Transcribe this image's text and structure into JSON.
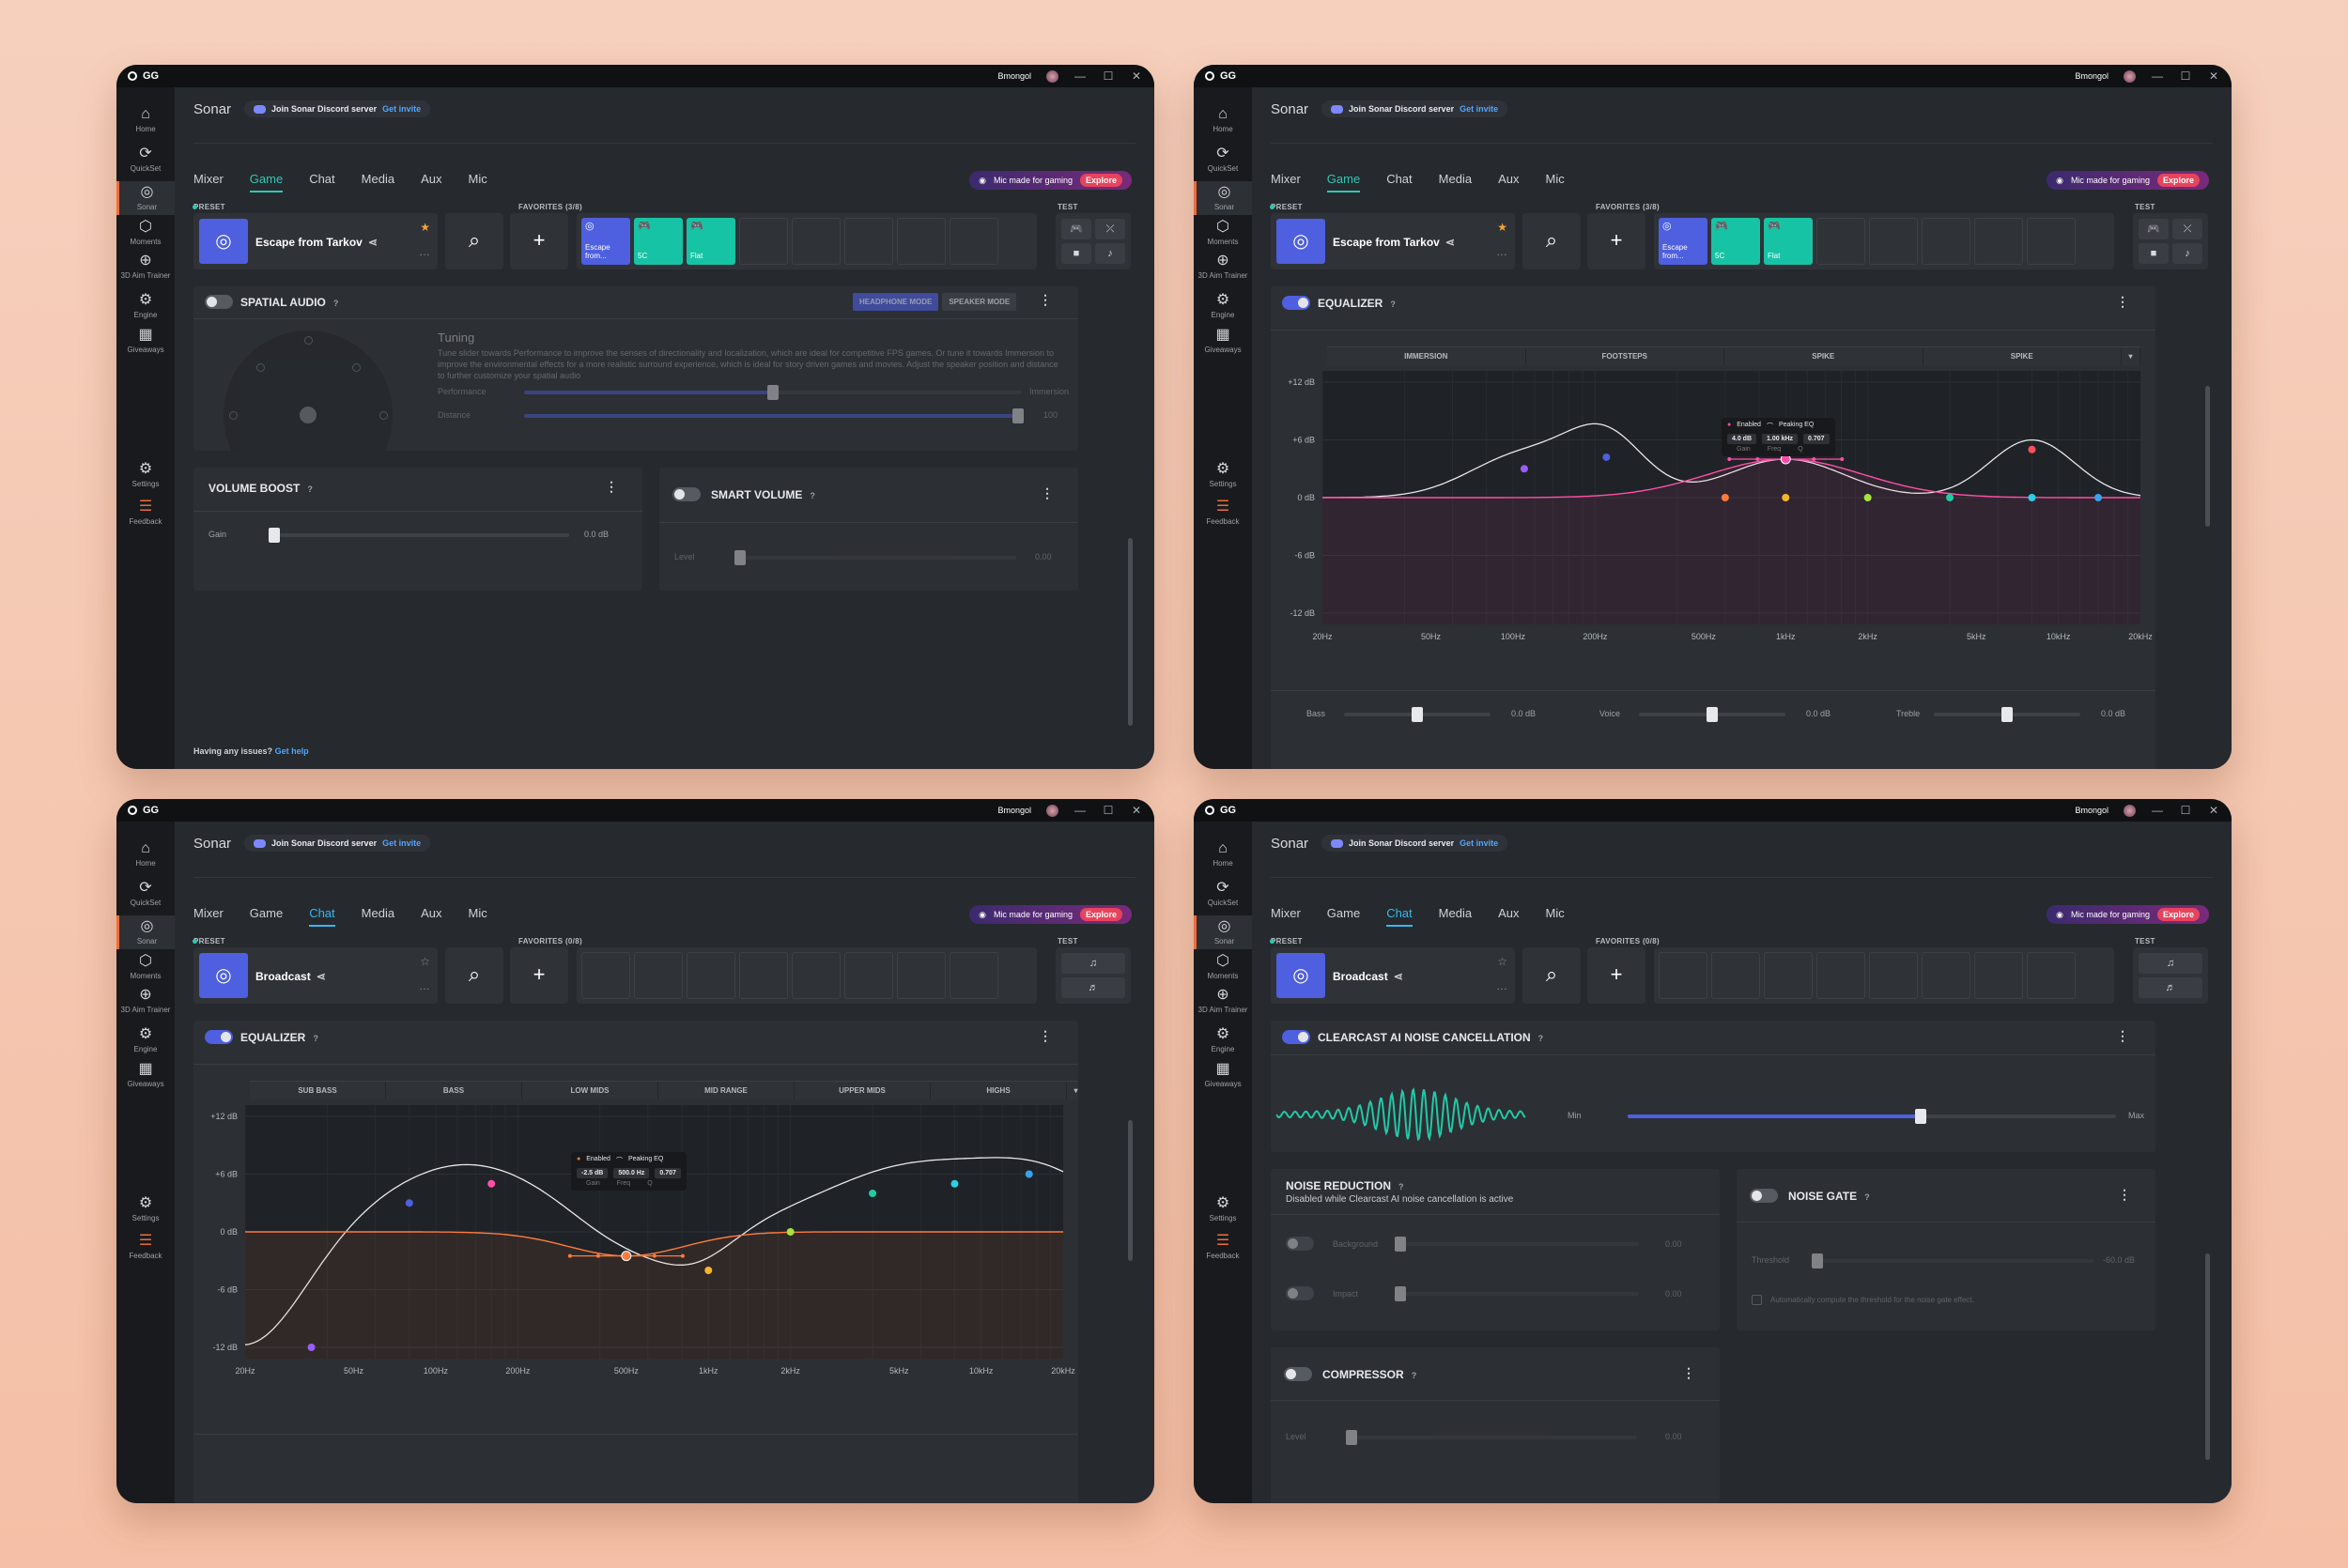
{
  "common": {
    "brand": "GG",
    "user": "Bmongol",
    "app_title": "Sonar",
    "discord_text": "Join Sonar Discord server",
    "discord_link": "Get invite",
    "tabs": [
      "Mixer",
      "Game",
      "Chat",
      "Media",
      "Aux",
      "Mic"
    ],
    "promo_text": "Mic made for gaming",
    "promo_link": "Explore",
    "preset_label": "PRESET",
    "test_label": "TEST",
    "sidebar": [
      "Home",
      "QuickSet",
      "Sonar",
      "Moments",
      "3D Aim Trainer",
      "Engine",
      "Giveaways",
      "Settings",
      "Feedback"
    ],
    "icons": {
      "home": "⌂",
      "quickset": "⟳",
      "sonar": "◎",
      "moments": "⬡",
      "aim": "⊕",
      "engine": "⚙",
      "giveaways": "▦",
      "settings": "⚙",
      "feedback": "☰"
    },
    "accent": "#4e5fe0",
    "teal": "#2ec9b4",
    "orange": "#ef6c3a"
  },
  "w1": {
    "preset_name": "Escape from Tarkov",
    "favorites_label": "FAVORITES (3/8)",
    "favs": [
      "Escape from...",
      "5C",
      "Flat"
    ],
    "spatial": {
      "title": "SPATIAL AUDIO",
      "mode_a": "HEADPHONE MODE",
      "mode_b": "SPEAKER MODE",
      "tuning_title": "Tuning",
      "tuning_desc": "Tune slider towards Performance to improve the senses of directionality and localization, which are ideal for competitive FPS games. Or tune it towards Immersion to improve the environmental effects for a more realistic surround experience, which is ideal for story driven games and movies. Adjust the speaker position and distance to further customize your spatial audio",
      "performance": "Performance",
      "immersion": "Immersion",
      "distance": "Distance",
      "distance_val": "100",
      "perf_pos": 0.5
    },
    "boost": {
      "title": "VOLUME BOOST",
      "gain": "Gain",
      "gain_val": "0.0 dB"
    },
    "smart": {
      "title": "SMART VOLUME",
      "level": "Level",
      "level_val": "0.00"
    },
    "help": "Having any issues?",
    "help_link": "Get help"
  },
  "w2": {
    "preset_name": "Escape from Tarkov",
    "favorites_label": "FAVORITES (3/8)",
    "favs": [
      "Escape from...",
      "5C",
      "Flat"
    ],
    "eq_title": "EQUALIZER",
    "bands": [
      "IMMERSION",
      "FOOTSTEPS",
      "SPIKE",
      "SPIKE"
    ],
    "y_labels": [
      "+12 dB",
      "+6 dB",
      "0 dB",
      "-6 dB",
      "-12 dB"
    ],
    "x_labels": [
      "20Hz",
      "50Hz",
      "100Hz",
      "200Hz",
      "500Hz",
      "1kHz",
      "2kHz",
      "5kHz",
      "10kHz",
      "20kHz"
    ],
    "tooltip": {
      "enabled": "Enabled",
      "type": "Peaking EQ",
      "gain": "4.0 dB",
      "freq": "1.00 kHz",
      "q": "0.707",
      "l_gain": "Gain",
      "l_freq": "Freq",
      "l_q": "Q"
    },
    "bass": "Bass",
    "bass_val": "0.0 dB",
    "voice": "Voice",
    "voice_val": "0.0 dB",
    "treble": "Treble",
    "treble_val": "0.0 dB"
  },
  "w3": {
    "preset_name": "Broadcast",
    "favorites_label": "FAVORITES (0/8)",
    "eq_title": "EQUALIZER",
    "bands": [
      "SUB BASS",
      "BASS",
      "LOW MIDS",
      "MID RANGE",
      "UPPER MIDS",
      "HIGHS"
    ],
    "y_labels": [
      "+12 dB",
      "+6 dB",
      "0 dB",
      "-6 dB",
      "-12 dB"
    ],
    "x_labels": [
      "20Hz",
      "50Hz",
      "100Hz",
      "200Hz",
      "500Hz",
      "1kHz",
      "2kHz",
      "5kHz",
      "10kHz",
      "20kHz"
    ],
    "tooltip": {
      "enabled": "Enabled",
      "type": "Peaking EQ",
      "gain": "-2.5 dB",
      "freq": "500.0 Hz",
      "q": "0.707",
      "l_gain": "Gain",
      "l_freq": "Freq",
      "l_q": "Q"
    }
  },
  "w4": {
    "preset_name": "Broadcast",
    "favorites_label": "FAVORITES (0/8)",
    "clearcast": {
      "title": "CLEARCAST AI NOISE CANCELLATION",
      "min": "Min",
      "max": "Max",
      "level": 0.6
    },
    "nr": {
      "title": "NOISE REDUCTION",
      "subtitle": "Disabled while Clearcast AI noise cancellation is active",
      "background": "Background",
      "background_val": "0.00",
      "impact": "Impact",
      "impact_val": "0.00"
    },
    "gate": {
      "title": "NOISE GATE",
      "threshold": "Threshold",
      "threshold_val": "-60.0 dB",
      "auto": "Automatically compute the threshold for the noise gate effect."
    },
    "comp": {
      "title": "COMPRESSOR",
      "level": "Level",
      "level_val": "0.00"
    }
  }
}
